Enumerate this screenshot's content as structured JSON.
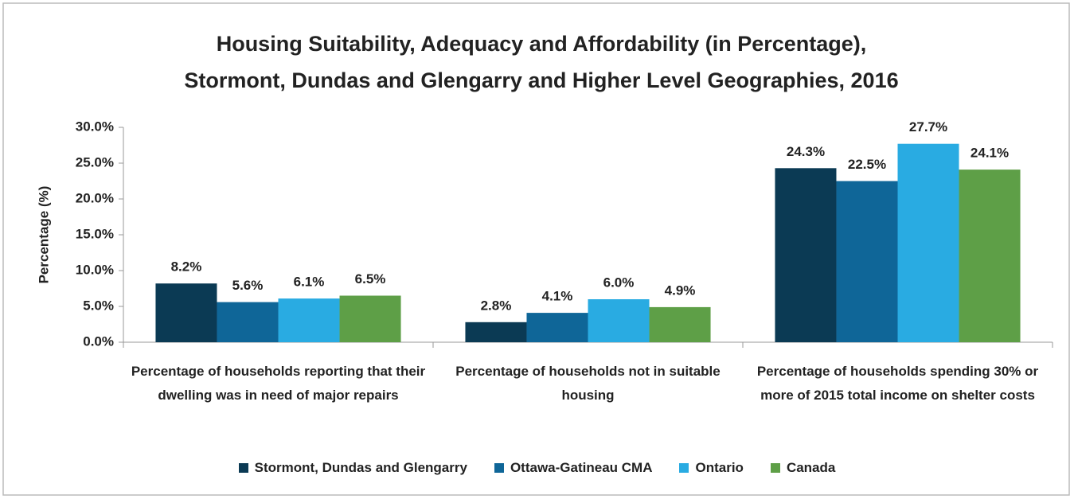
{
  "chart_data": {
    "type": "bar",
    "title": "Housing Suitability, Adequacy and Affordability (in Percentage),",
    "subtitle": "Stormont, Dundas and Glengarry and Higher Level Geographies, 2016",
    "y_label": "Percentage (%)",
    "categories": [
      "Percentage of households reporting that their dwelling was in need of major repairs",
      "Percentage of households not in suitable housing",
      "Percentage of households spending 30% or more of 2015 total income on shelter costs"
    ],
    "series": [
      {
        "name": "Stormont, Dundas and Glengarry",
        "color": "#0b3a54",
        "values": [
          8.2,
          2.8,
          24.3
        ],
        "value_labels": [
          "8.2%",
          "2.8%",
          "24.3%"
        ]
      },
      {
        "name": "Ottawa-Gatineau CMA",
        "color": "#0f6698",
        "values": [
          5.6,
          4.1,
          22.5
        ],
        "value_labels": [
          "5.6%",
          "4.1%",
          "22.5%"
        ]
      },
      {
        "name": "Ontario",
        "color": "#29abe2",
        "values": [
          6.1,
          6.0,
          27.7
        ],
        "value_labels": [
          "6.1%",
          "6.0%",
          "27.7%"
        ]
      },
      {
        "name": "Canada",
        "color": "#5e9f47",
        "values": [
          6.5,
          4.9,
          24.1
        ],
        "value_labels": [
          "6.5%",
          "4.9%",
          "24.1%"
        ]
      }
    ],
    "ylim": [
      0,
      30
    ],
    "yticks": [
      {
        "value": 0,
        "label": "0.0%"
      },
      {
        "value": 5,
        "label": "5.0%"
      },
      {
        "value": 10,
        "label": "10.0%"
      },
      {
        "value": 15,
        "label": "15.0%"
      },
      {
        "value": 20,
        "label": "20.0%"
      },
      {
        "value": 25,
        "label": "25.0%"
      },
      {
        "value": 30,
        "label": "30.0%"
      }
    ],
    "grid": false,
    "legend": "bottom"
  }
}
